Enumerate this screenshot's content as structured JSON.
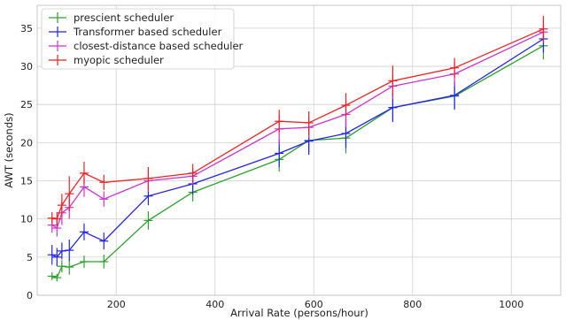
{
  "chart_data": {
    "type": "line",
    "xlabel": "Arrival Rate (persons/hour)",
    "ylabel": "AWT (seconds)",
    "xlim": [
      40,
      1100
    ],
    "ylim": [
      0,
      38
    ],
    "xticks": [
      200,
      400,
      600,
      800,
      1000
    ],
    "yticks": [
      0,
      5,
      10,
      15,
      20,
      25,
      30,
      35
    ],
    "grid": true,
    "legend_position": "top-left",
    "x": [
      70,
      80,
      90,
      105,
      135,
      175,
      265,
      355,
      530,
      590,
      665,
      760,
      885,
      1065
    ],
    "series": [
      {
        "name": "prescient scheduler",
        "color": "#2ca02c",
        "values": [
          2.5,
          2.3,
          3.8,
          3.7,
          4.4,
          4.4,
          9.8,
          13.5,
          17.8,
          20.3,
          20.6,
          24.6,
          26.1,
          32.7
        ],
        "errors": [
          0.5,
          0.5,
          0.8,
          1.0,
          0.8,
          0.9,
          1.2,
          1.2,
          1.6,
          1.6,
          2.0,
          1.8,
          1.8,
          1.8
        ]
      },
      {
        "name": "Transformer based scheduler",
        "color": "#2222ee",
        "values": [
          5.3,
          5.0,
          5.8,
          5.9,
          8.3,
          7.1,
          13.0,
          14.6,
          18.6,
          20.2,
          21.2,
          24.6,
          26.2,
          33.6
        ],
        "errors": [
          1.3,
          1.2,
          1.1,
          1.4,
          1.1,
          1.1,
          1.2,
          1.4,
          1.8,
          1.8,
          1.9,
          1.9,
          1.8,
          1.8
        ]
      },
      {
        "name": "closest-distance based scheduler",
        "color": "#cc33cc",
        "values": [
          9.2,
          8.8,
          10.8,
          11.5,
          14.2,
          12.6,
          15.0,
          15.6,
          21.8,
          22.0,
          23.7,
          27.4,
          29.0,
          34.5
        ],
        "errors": [
          1.0,
          1.1,
          1.6,
          1.5,
          1.3,
          1.0,
          1.4,
          1.1,
          1.9,
          1.4,
          1.7,
          1.7,
          1.6,
          1.4
        ]
      },
      {
        "name": "myopic scheduler",
        "color": "#ee2222",
        "values": [
          10.1,
          10.0,
          11.8,
          13.3,
          16.0,
          14.8,
          15.3,
          16.0,
          22.8,
          22.6,
          24.9,
          28.1,
          29.8,
          34.9
        ],
        "errors": [
          0.8,
          0.9,
          1.5,
          2.3,
          1.5,
          1.0,
          1.5,
          1.2,
          1.5,
          1.5,
          1.6,
          2.0,
          1.3,
          1.7
        ]
      }
    ]
  }
}
